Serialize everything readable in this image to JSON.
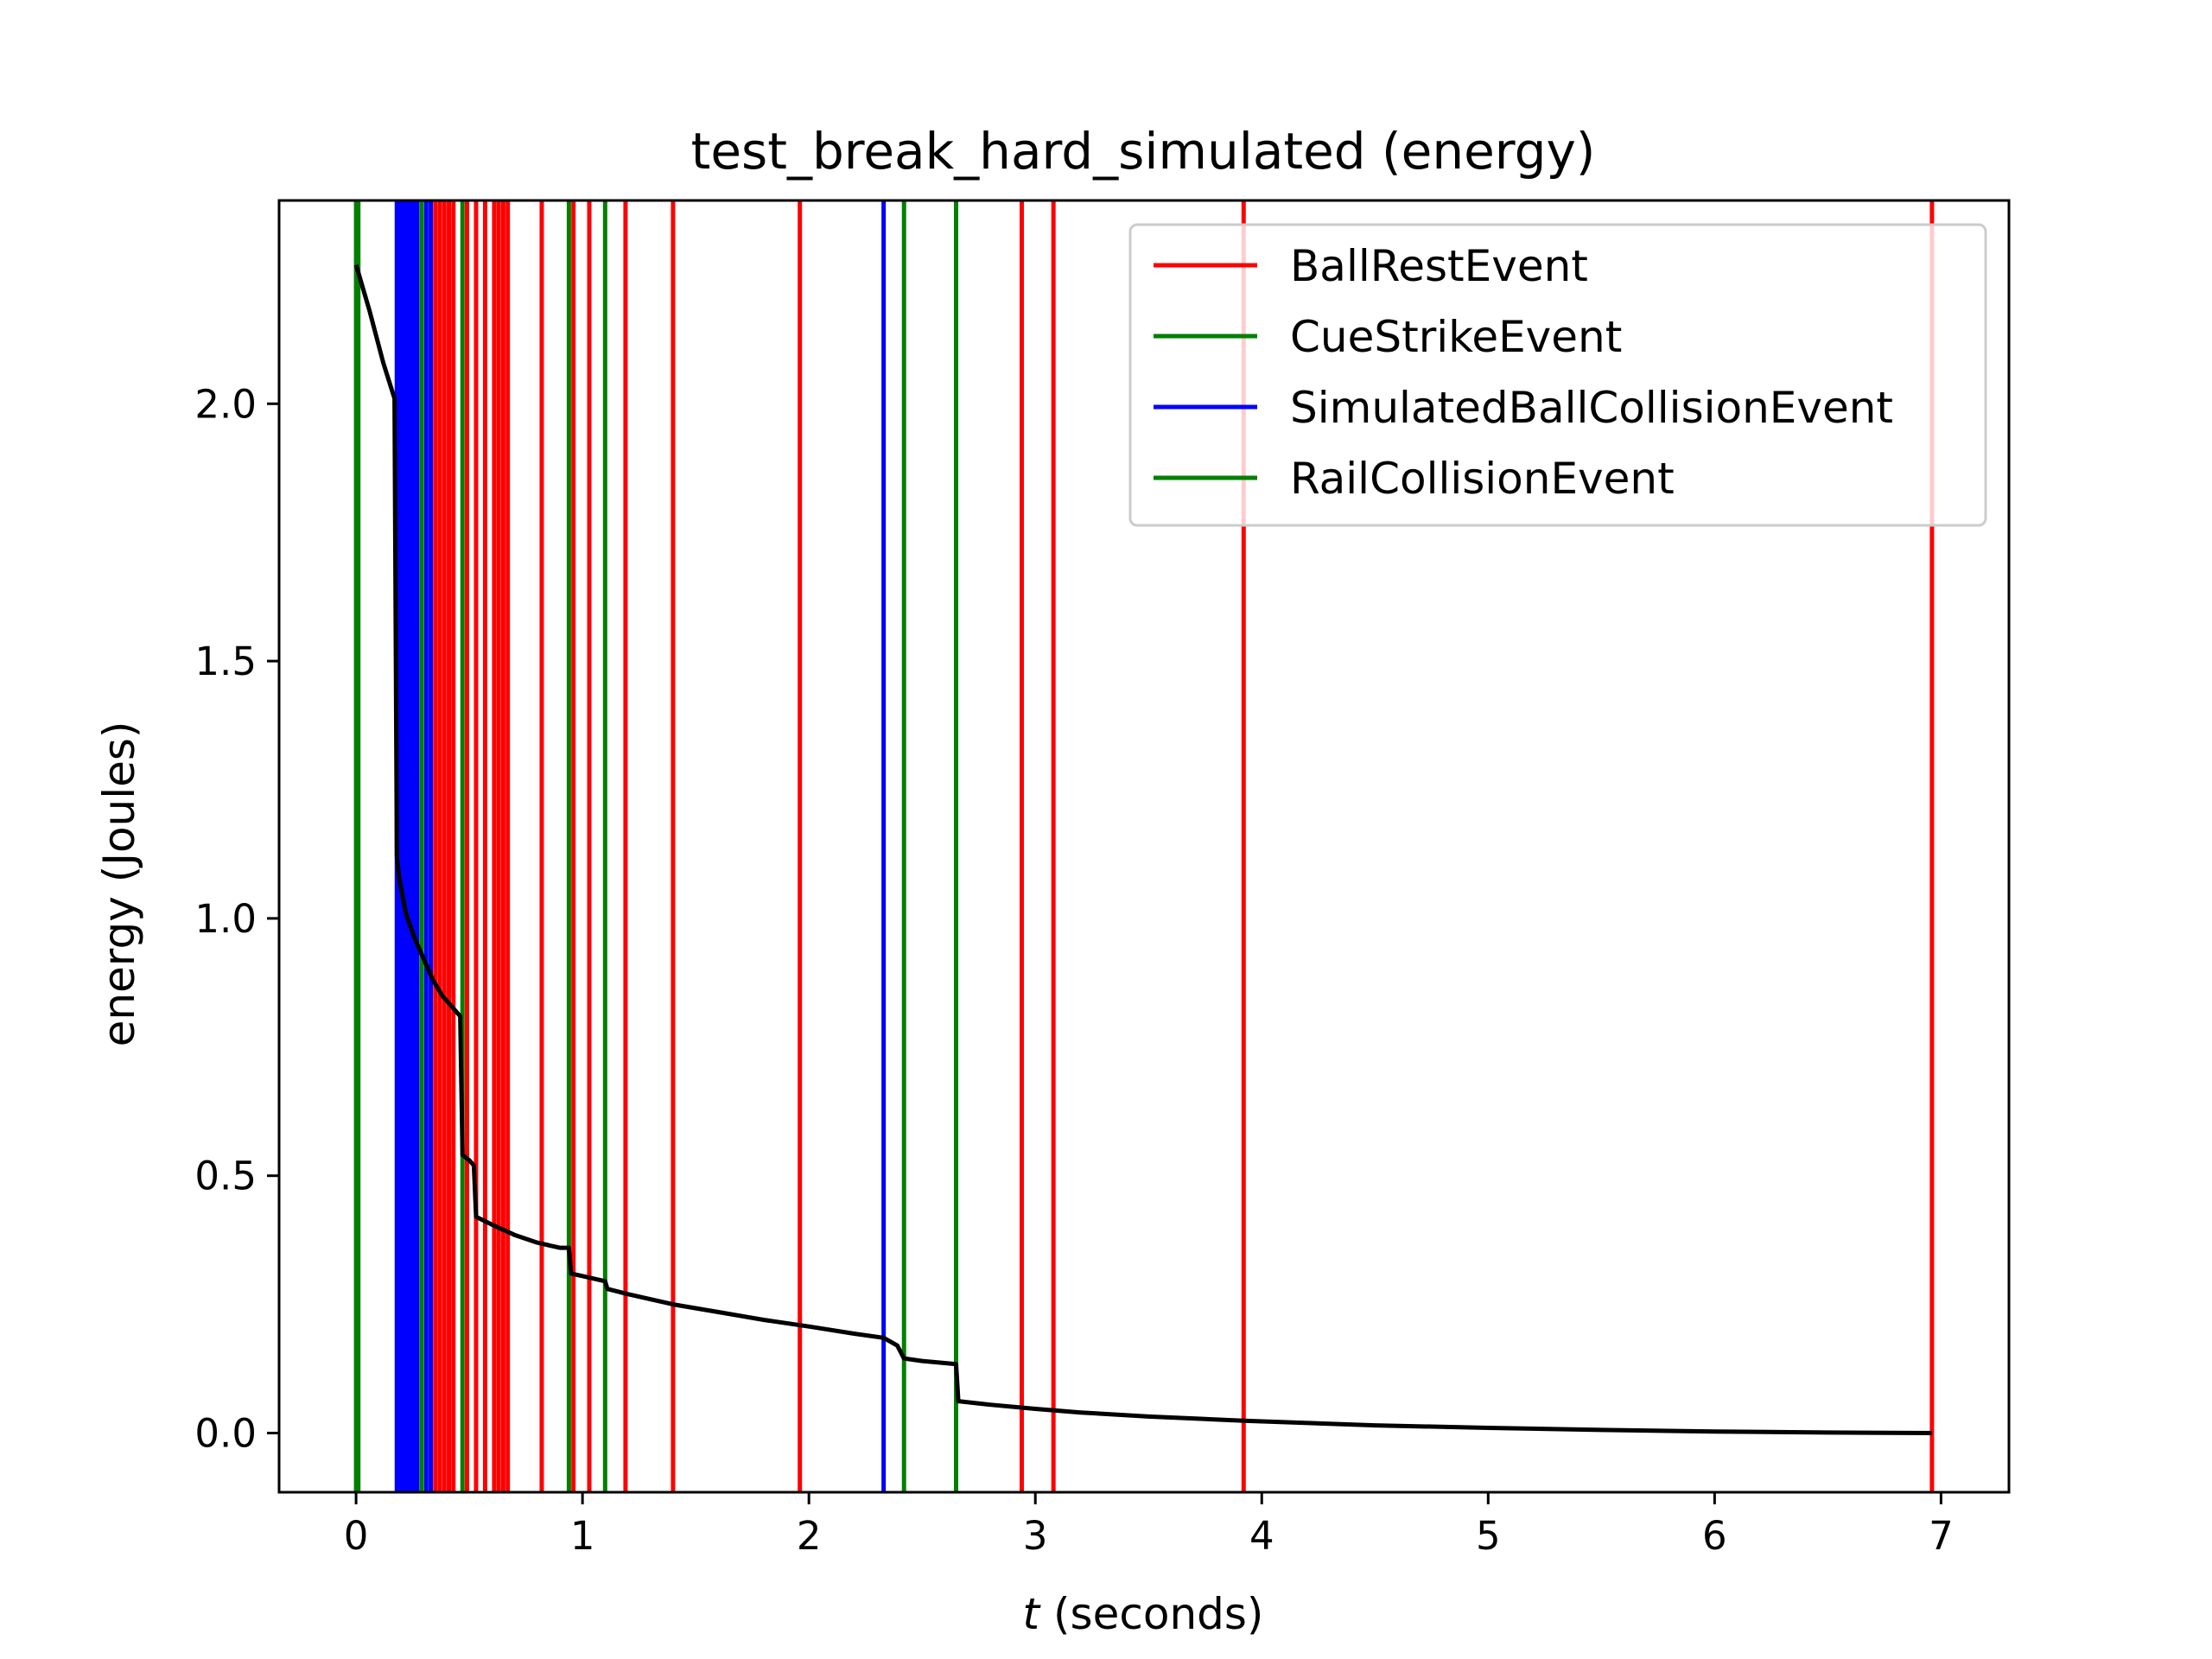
{
  "chart_data": {
    "type": "line",
    "title": "test_break_hard_simulated (energy)",
    "xlabel_var": "t",
    "xlabel_rest": " (seconds)",
    "ylabel": "energy (Joules)",
    "xlim": [
      -0.34,
      7.3
    ],
    "ylim": [
      -0.115,
      2.395
    ],
    "xticks": [
      0,
      1,
      2,
      3,
      4,
      5,
      6,
      7
    ],
    "xtick_labels": [
      "0",
      "1",
      "2",
      "3",
      "4",
      "5",
      "6",
      "7"
    ],
    "yticks": [
      0.0,
      0.5,
      1.0,
      1.5,
      2.0
    ],
    "ytick_labels": [
      "0.0",
      "0.5",
      "1.0",
      "1.5",
      "2.0"
    ],
    "grid": false,
    "legend_position": "top-right",
    "event_types": [
      {
        "name": "BallRestEvent",
        "color": "#ff0000"
      },
      {
        "name": "CueStrikeEvent",
        "color": "#008000"
      },
      {
        "name": "SimulatedBallCollisionEvent",
        "color": "#0000ff"
      },
      {
        "name": "RailCollisionEvent",
        "color": "#008000"
      }
    ],
    "events": {
      "BallRestEvent": [
        0.35,
        0.37,
        0.39,
        0.41,
        0.43,
        0.49,
        0.53,
        0.57,
        0.61,
        0.63,
        0.65,
        0.67,
        0.82,
        0.96,
        1.03,
        1.19,
        1.4,
        1.96,
        2.94,
        3.08,
        3.92,
        6.96
      ],
      "CueStrikeEvent": [
        0.0
      ],
      "SimulatedBallCollisionEvent": [
        0.18,
        0.19,
        0.2,
        0.21,
        0.22,
        0.23,
        0.24,
        0.25,
        0.26,
        0.27,
        0.31,
        0.33,
        2.33
      ],
      "RailCollisionEvent": [
        0.01,
        0.29,
        0.47,
        0.94,
        1.1,
        2.42,
        2.65
      ]
    },
    "energy": {
      "x": [
        0.0,
        0.06,
        0.12,
        0.17,
        0.18,
        0.19,
        0.22,
        0.26,
        0.3,
        0.34,
        0.38,
        0.42,
        0.46,
        0.47,
        0.5,
        0.52,
        0.53,
        0.6,
        0.7,
        0.8,
        0.9,
        0.94,
        0.95,
        1.0,
        1.05,
        1.1,
        1.11,
        1.2,
        1.4,
        1.6,
        1.8,
        2.0,
        2.2,
        2.33,
        2.39,
        2.42,
        2.5,
        2.6,
        2.65,
        2.66,
        2.8,
        3.0,
        3.2,
        3.5,
        3.92,
        4.5,
        5.0,
        5.5,
        6.0,
        6.5,
        6.96
      ],
      "y": [
        2.27,
        2.18,
        2.08,
        2.01,
        1.12,
        1.08,
        1.01,
        0.96,
        0.92,
        0.88,
        0.85,
        0.83,
        0.81,
        0.54,
        0.53,
        0.52,
        0.42,
        0.405,
        0.385,
        0.37,
        0.36,
        0.36,
        0.31,
        0.305,
        0.3,
        0.295,
        0.28,
        0.27,
        0.25,
        0.235,
        0.22,
        0.207,
        0.193,
        0.185,
        0.17,
        0.145,
        0.14,
        0.136,
        0.134,
        0.062,
        0.055,
        0.047,
        0.04,
        0.032,
        0.024,
        0.015,
        0.01,
        0.006,
        0.003,
        0.001,
        0.0
      ],
      "color": "#000000"
    }
  }
}
